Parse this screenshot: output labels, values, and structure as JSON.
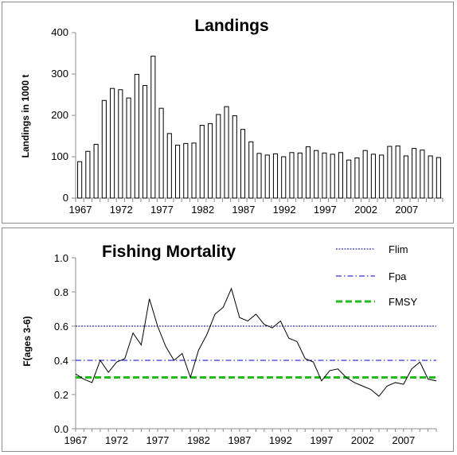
{
  "chart_data": [
    {
      "type": "bar",
      "title": "Landings",
      "ylabel": "Landings in 1000 t",
      "xlabel": "",
      "ylim": [
        0,
        400
      ],
      "yticks": [
        0,
        100,
        200,
        300,
        400
      ],
      "xtick_labels": [
        "1967",
        "1972",
        "1977",
        "1982",
        "1987",
        "1992",
        "1997",
        "2002",
        "2007"
      ],
      "categories": [
        1967,
        1968,
        1969,
        1970,
        1971,
        1972,
        1973,
        1974,
        1975,
        1976,
        1977,
        1978,
        1979,
        1980,
        1981,
        1982,
        1983,
        1984,
        1985,
        1986,
        1987,
        1988,
        1989,
        1990,
        1991,
        1992,
        1993,
        1994,
        1995,
        1996,
        1997,
        1998,
        1999,
        2000,
        2001,
        2002,
        2003,
        2004,
        2005,
        2006,
        2007,
        2008,
        2009,
        2010,
        2011
      ],
      "values": [
        88,
        113,
        130,
        236,
        265,
        262,
        242,
        299,
        272,
        343,
        217,
        156,
        128,
        132,
        133,
        176,
        180,
        202,
        221,
        199,
        166,
        136,
        108,
        104,
        107,
        100,
        110,
        109,
        124,
        115,
        109,
        106,
        110,
        92,
        97,
        115,
        106,
        104,
        125,
        126,
        102,
        120,
        116,
        102,
        98
      ],
      "grid": false,
      "legend": "none"
    },
    {
      "type": "line",
      "title": "Fishing Mortality",
      "ylabel": "F(ages 3-6)",
      "xlabel": "",
      "ylim": [
        0,
        1.0
      ],
      "yticks": [
        "0.0",
        "0.2",
        "0.4",
        "0.6",
        "0.8",
        "1.0"
      ],
      "xtick_labels": [
        "1967",
        "1972",
        "1977",
        "1982",
        "1987",
        "1992",
        "1997",
        "2002",
        "2007"
      ],
      "x": [
        1967,
        1968,
        1969,
        1970,
        1971,
        1972,
        1973,
        1974,
        1975,
        1976,
        1977,
        1978,
        1979,
        1980,
        1981,
        1982,
        1983,
        1984,
        1985,
        1986,
        1987,
        1988,
        1989,
        1990,
        1991,
        1992,
        1993,
        1994,
        1995,
        1996,
        1997,
        1998,
        1999,
        2000,
        2001,
        2002,
        2003,
        2004,
        2005,
        2006,
        2007,
        2008,
        2009,
        2010,
        2011
      ],
      "series": [
        {
          "name": "",
          "color": "#000000",
          "values": [
            0.32,
            0.29,
            0.27,
            0.4,
            0.33,
            0.39,
            0.41,
            0.56,
            0.49,
            0.76,
            0.6,
            0.48,
            0.4,
            0.44,
            0.3,
            0.46,
            0.55,
            0.67,
            0.71,
            0.82,
            0.65,
            0.63,
            0.67,
            0.61,
            0.59,
            0.63,
            0.53,
            0.51,
            0.41,
            0.39,
            0.28,
            0.34,
            0.35,
            0.3,
            0.27,
            0.25,
            0.23,
            0.19,
            0.25,
            0.27,
            0.26,
            0.35,
            0.39,
            0.29,
            0.28
          ]
        }
      ],
      "reference_lines": [
        {
          "name": "Flim",
          "value": 0.6,
          "color": "#00008b",
          "style": "dotted"
        },
        {
          "name": "Fpa",
          "value": 0.4,
          "color": "#0000cd",
          "style": "dash-dot"
        },
        {
          "name": "FMSY",
          "value": 0.3,
          "color": "#22bb22",
          "style": "dashed"
        }
      ],
      "grid": false,
      "legend": "top-right"
    }
  ]
}
